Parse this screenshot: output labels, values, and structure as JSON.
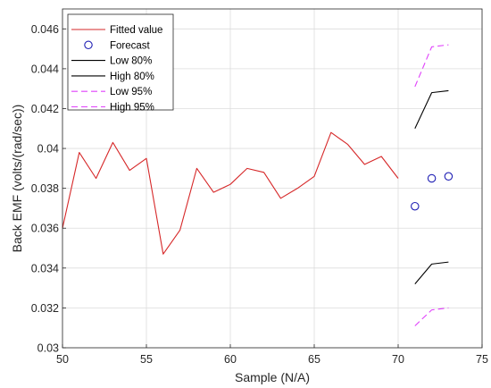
{
  "chart_data": {
    "type": "line",
    "xlabel": "Sample (N/A)",
    "ylabel": "Back EMF (volts/(rad/sec))",
    "xlim": [
      50,
      75
    ],
    "ylim": [
      0.03,
      0.047
    ],
    "x_ticks": [
      50,
      55,
      60,
      65,
      70,
      75
    ],
    "y_ticks": [
      0.03,
      0.032,
      0.034,
      0.036,
      0.038,
      0.04,
      0.042,
      0.044,
      0.046
    ],
    "x_tick_labels": [
      "50",
      "55",
      "60",
      "65",
      "70",
      "75"
    ],
    "y_tick_labels": [
      "0.03",
      "0.032",
      "0.034",
      "0.036",
      "0.038",
      "0.04",
      "0.042",
      "0.044",
      "0.046"
    ],
    "grid": true,
    "legend_position": "top-left",
    "series": [
      {
        "name": "Fitted value",
        "style": "solid-line",
        "color": "#d62728",
        "x": [
          50,
          51,
          52,
          53,
          54,
          55,
          56,
          57,
          58,
          59,
          60,
          61,
          62,
          63,
          64,
          65,
          66,
          67,
          68,
          69,
          70
        ],
        "y": [
          0.036,
          0.0398,
          0.0385,
          0.0403,
          0.0389,
          0.0395,
          0.0347,
          0.0359,
          0.039,
          0.0378,
          0.0382,
          0.039,
          0.0388,
          0.0375,
          0.038,
          0.0386,
          0.0408,
          0.0402,
          0.0392,
          0.0396,
          0.0385
        ]
      },
      {
        "name": "Forecast",
        "style": "circle-marker",
        "color": "#1f1fb4",
        "x": [
          71,
          72,
          73
        ],
        "y": [
          0.0371,
          0.0385,
          0.0386
        ]
      },
      {
        "name": "Low 80%",
        "style": "solid-line",
        "color": "#000000",
        "x": [
          71,
          72,
          73
        ],
        "y": [
          0.0332,
          0.0342,
          0.0343
        ]
      },
      {
        "name": "High 80%",
        "style": "solid-line",
        "color": "#000000",
        "x": [
          71,
          72,
          73
        ],
        "y": [
          0.041,
          0.0428,
          0.0429
        ]
      },
      {
        "name": "Low 95%",
        "style": "dashed-line",
        "color": "#e040fb",
        "x": [
          71,
          72,
          73
        ],
        "y": [
          0.0311,
          0.0319,
          0.032
        ]
      },
      {
        "name": "High 95%",
        "style": "dashed-line",
        "color": "#e040fb",
        "x": [
          71,
          72,
          73
        ],
        "y": [
          0.0431,
          0.0451,
          0.0452
        ]
      }
    ]
  }
}
